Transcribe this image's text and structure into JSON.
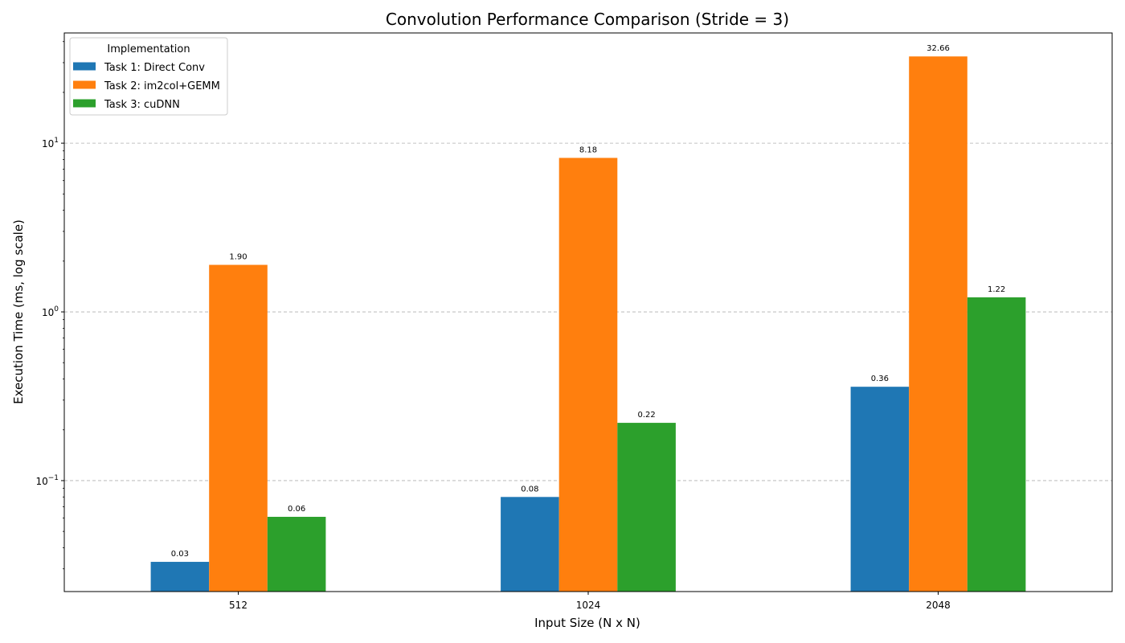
{
  "chart_data": {
    "type": "bar",
    "title": "Convolution Performance Comparison (Stride = 3)",
    "xlabel": "Input Size (N x N)",
    "ylabel": "Execution Time (ms, log scale)",
    "yscale": "log",
    "ylim": [
      0.022,
      45
    ],
    "yticks": [
      {
        "value": 0.1,
        "base": "10",
        "exp": "−1"
      },
      {
        "value": 1,
        "base": "10",
        "exp": "0"
      },
      {
        "value": 10,
        "base": "10",
        "exp": "1"
      }
    ],
    "grid": true,
    "legend": {
      "title": "Implementation",
      "placement": "top-left"
    },
    "categories": [
      "512",
      "1024",
      "2048"
    ],
    "series": [
      {
        "name": "Task 1: Direct Conv",
        "color": "#1f77b4",
        "values": [
          0.033,
          0.08,
          0.36
        ],
        "labels": [
          "0.03",
          "0.08",
          "0.36"
        ]
      },
      {
        "name": "Task 2: im2col+GEMM",
        "color": "#ff7f0e",
        "values": [
          1.9,
          8.18,
          32.66
        ],
        "labels": [
          "1.90",
          "8.18",
          "32.66"
        ]
      },
      {
        "name": "Task 3: cuDNN",
        "color": "#2ca02c",
        "values": [
          0.061,
          0.22,
          1.22
        ],
        "labels": [
          "0.06",
          "0.22",
          "1.22"
        ]
      }
    ]
  }
}
